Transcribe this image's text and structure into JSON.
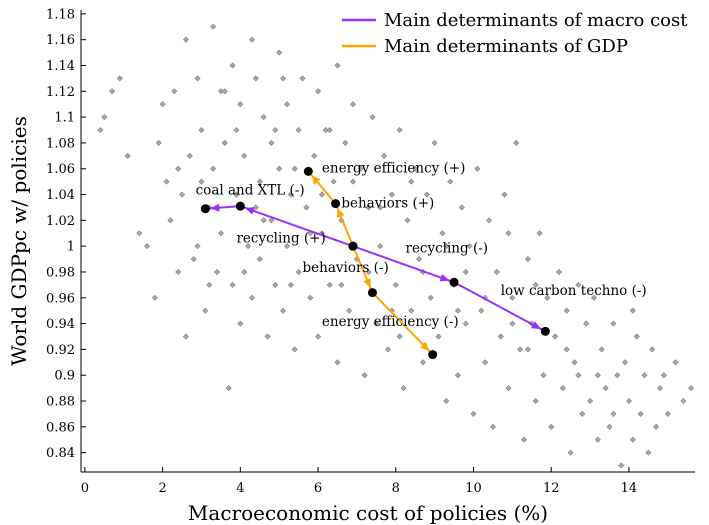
{
  "chart_data": {
    "type": "scatter",
    "xlabel": "Macroeconomic cost of policies (%)",
    "ylabel": "World GDPpc w/ policies",
    "xlim": [
      -0.1,
      15.7
    ],
    "ylim": [
      0.825,
      1.183
    ],
    "x_ticks": [
      0,
      2,
      4,
      6,
      8,
      10,
      12,
      14
    ],
    "y_ticks": [
      0.84,
      0.86,
      0.88,
      0.9,
      0.92,
      0.94,
      0.96,
      0.98,
      1,
      1.02,
      1.04,
      1.06,
      1.08,
      1.1,
      1.12,
      1.14,
      1.16,
      1.18
    ],
    "y_tick_labels": [
      "0.84",
      "0.86",
      "0.88",
      "0.9",
      "0.92",
      "0.94",
      "0.96",
      "0.98",
      "1",
      "1.02",
      "1.04",
      "1.06",
      "1.08",
      "1.1",
      "1.12",
      "1.14",
      "1.16",
      "1.18"
    ],
    "grid": false,
    "legend_position": "top-right",
    "legend": [
      {
        "label": "Main determinants of macro cost",
        "color": "#9b30ff"
      },
      {
        "label": "Main determinants of GDP",
        "color": "#ffa500"
      }
    ],
    "scatter_color": "#a9a9a9",
    "scatter_points": [
      [
        0.4,
        1.09
      ],
      [
        0.5,
        1.1
      ],
      [
        0.7,
        1.12
      ],
      [
        0.9,
        1.13
      ],
      [
        1.1,
        1.07
      ],
      [
        1.4,
        1.01
      ],
      [
        1.6,
        1.0
      ],
      [
        1.8,
        0.96
      ],
      [
        2.0,
        1.11
      ],
      [
        2.1,
        1.05
      ],
      [
        2.3,
        1.12
      ],
      [
        2.4,
        0.98
      ],
      [
        2.5,
        1.04
      ],
      [
        2.6,
        1.16
      ],
      [
        2.6,
        0.93
      ],
      [
        2.7,
        1.07
      ],
      [
        2.8,
        0.99
      ],
      [
        2.9,
        1.13
      ],
      [
        3.0,
        1.09
      ],
      [
        3.1,
        0.95
      ],
      [
        3.2,
        1.03
      ],
      [
        3.3,
        1.17
      ],
      [
        3.3,
        1.06
      ],
      [
        3.4,
        0.98
      ],
      [
        3.5,
        1.12
      ],
      [
        3.5,
        1.01
      ],
      [
        3.6,
        1.08
      ],
      [
        3.7,
        0.89
      ],
      [
        3.8,
        1.14
      ],
      [
        3.8,
        0.97
      ],
      [
        3.9,
        1.04
      ],
      [
        4.0,
        1.11
      ],
      [
        4.0,
        0.94
      ],
      [
        4.1,
        1.07
      ],
      [
        4.2,
        1.0
      ],
      [
        4.3,
        1.16
      ],
      [
        4.3,
        0.96
      ],
      [
        4.4,
        1.13
      ],
      [
        4.5,
        1.05
      ],
      [
        4.5,
        0.99
      ],
      [
        4.6,
        1.1
      ],
      [
        4.7,
        0.93
      ],
      [
        4.8,
        1.08
      ],
      [
        4.8,
        1.02
      ],
      [
        4.9,
        0.97
      ],
      [
        5.0,
        1.15
      ],
      [
        5.0,
        1.06
      ],
      [
        5.1,
        0.95
      ],
      [
        5.2,
        1.11
      ],
      [
        5.2,
        1.0
      ],
      [
        5.3,
        1.04
      ],
      [
        5.4,
        0.92
      ],
      [
        5.5,
        1.09
      ],
      [
        5.5,
        0.98
      ],
      [
        5.6,
        1.13
      ],
      [
        5.7,
        1.03
      ],
      [
        5.8,
        0.96
      ],
      [
        5.9,
        1.07
      ],
      [
        6.0,
        1.12
      ],
      [
        6.0,
        0.93
      ],
      [
        6.1,
        1.01
      ],
      [
        6.2,
        1.09
      ],
      [
        6.3,
        0.97
      ],
      [
        6.4,
        1.05
      ],
      [
        6.5,
        1.14
      ],
      [
        6.5,
        0.91
      ],
      [
        6.6,
        1.02
      ],
      [
        6.7,
        1.08
      ],
      [
        6.8,
        0.95
      ],
      [
        6.9,
        1.11
      ],
      [
        7.0,
        0.99
      ],
      [
        7.1,
        1.06
      ],
      [
        7.2,
        0.9
      ],
      [
        7.3,
        1.03
      ],
      [
        7.4,
        1.1
      ],
      [
        7.5,
        0.94
      ],
      [
        7.6,
        1.0
      ],
      [
        7.7,
        1.07
      ],
      [
        7.8,
        0.92
      ],
      [
        7.9,
        1.04
      ],
      [
        8.0,
        0.97
      ],
      [
        8.1,
        1.09
      ],
      [
        8.2,
        0.89
      ],
      [
        8.3,
        1.02
      ],
      [
        8.4,
        0.95
      ],
      [
        8.5,
        1.06
      ],
      [
        8.6,
        0.99
      ],
      [
        8.7,
        0.91
      ],
      [
        8.8,
        1.04
      ],
      [
        8.9,
        0.96
      ],
      [
        9.0,
        1.08
      ],
      [
        9.1,
        0.93
      ],
      [
        9.2,
        1.01
      ],
      [
        9.3,
        0.88
      ],
      [
        9.4,
        1.05
      ],
      [
        9.5,
        0.97
      ],
      [
        9.6,
        0.9
      ],
      [
        9.7,
        1.03
      ],
      [
        9.8,
        0.94
      ],
      [
        9.9,
        1.0
      ],
      [
        10.0,
        0.87
      ],
      [
        10.1,
        1.06
      ],
      [
        10.2,
        0.95
      ],
      [
        10.3,
        0.91
      ],
      [
        10.4,
        1.02
      ],
      [
        10.5,
        0.86
      ],
      [
        10.6,
        0.98
      ],
      [
        10.7,
        0.93
      ],
      [
        10.8,
        1.04
      ],
      [
        10.9,
        0.89
      ],
      [
        11.0,
        0.96
      ],
      [
        11.1,
        1.08
      ],
      [
        11.2,
        0.92
      ],
      [
        11.3,
        0.85
      ],
      [
        11.4,
        0.99
      ],
      [
        11.5,
        0.94
      ],
      [
        11.6,
        0.88
      ],
      [
        11.7,
        1.01
      ],
      [
        11.8,
        0.9
      ],
      [
        11.9,
        0.96
      ],
      [
        12.0,
        0.86
      ],
      [
        12.1,
        0.93
      ],
      [
        12.2,
        0.98
      ],
      [
        12.3,
        0.89
      ],
      [
        12.4,
        0.95
      ],
      [
        12.5,
        0.84
      ],
      [
        12.6,
        0.91
      ],
      [
        12.7,
        0.97
      ],
      [
        12.8,
        0.87
      ],
      [
        12.9,
        0.94
      ],
      [
        13.0,
        0.88
      ],
      [
        13.1,
        0.96
      ],
      [
        13.2,
        0.85
      ],
      [
        13.3,
        0.92
      ],
      [
        13.4,
        0.89
      ],
      [
        13.5,
        0.86
      ],
      [
        13.6,
        0.94
      ],
      [
        13.7,
        0.9
      ],
      [
        13.8,
        0.83
      ],
      [
        13.9,
        0.91
      ],
      [
        14.0,
        0.88
      ],
      [
        14.1,
        0.85
      ],
      [
        14.2,
        0.93
      ],
      [
        14.3,
        0.87
      ],
      [
        14.4,
        0.9
      ],
      [
        14.5,
        0.84
      ],
      [
        14.6,
        0.92
      ],
      [
        14.7,
        0.86
      ],
      [
        14.8,
        0.89
      ],
      [
        15.0,
        0.87
      ],
      [
        15.2,
        0.91
      ],
      [
        15.4,
        0.88
      ],
      [
        15.6,
        0.89
      ],
      [
        1.9,
        1.08
      ],
      [
        2.2,
        1.02
      ],
      [
        2.9,
        1.0
      ],
      [
        3.6,
        1.12
      ],
      [
        4.1,
        0.98
      ],
      [
        4.6,
        1.02
      ],
      [
        5.1,
        1.13
      ],
      [
        5.4,
        1.06
      ],
      [
        6.1,
        1.04
      ],
      [
        6.6,
        0.97
      ],
      [
        7.3,
        0.98
      ],
      [
        7.9,
        0.95
      ],
      [
        8.4,
        1.05
      ],
      [
        9.3,
        1.0
      ],
      [
        9.8,
        0.98
      ],
      [
        10.3,
        0.96
      ],
      [
        11.0,
        0.94
      ],
      [
        11.6,
        0.97
      ],
      [
        12.4,
        0.92
      ],
      [
        13.2,
        0.9
      ],
      [
        14.1,
        0.95
      ],
      [
        3.0,
        1.05
      ],
      [
        3.9,
        1.09
      ],
      [
        4.4,
        1.03
      ],
      [
        5.3,
        0.97
      ],
      [
        6.9,
        1.05
      ],
      [
        7.6,
        1.03
      ],
      [
        8.7,
        0.98
      ],
      [
        10.9,
        1.01
      ],
      [
        12.7,
        0.9
      ],
      [
        2.4,
        1.06
      ],
      [
        3.2,
        0.97
      ],
      [
        4.9,
        1.09
      ],
      [
        5.8,
        1.01
      ],
      [
        6.3,
        1.09
      ],
      [
        8.1,
        0.93
      ],
      [
        9.6,
        0.95
      ],
      [
        11.4,
        0.92
      ],
      [
        13.6,
        0.87
      ],
      [
        14.9,
        0.9
      ]
    ],
    "macro_cost_path": {
      "color": "#9b30ff",
      "points": [
        [
          3.1,
          1.029
        ],
        [
          4.0,
          1.031
        ],
        [
          6.9,
          1.0
        ],
        [
          9.5,
          0.972
        ],
        [
          11.85,
          0.934
        ]
      ]
    },
    "gdp_path": {
      "color": "#ffa500",
      "points": [
        [
          5.75,
          1.058
        ],
        [
          6.45,
          1.033
        ],
        [
          6.9,
          1.0
        ],
        [
          7.4,
          0.964
        ],
        [
          8.95,
          0.916
        ]
      ]
    },
    "annotations": [
      {
        "text": "energy efficiency (+)",
        "x": 6.1,
        "y": 1.057,
        "anchor": "start"
      },
      {
        "text": "coal and XTL (-)",
        "x": 2.85,
        "y": 1.04,
        "anchor": "start"
      },
      {
        "text": "behaviors (+)",
        "x": 6.6,
        "y": 1.03,
        "anchor": "start"
      },
      {
        "text": "recycling (+)",
        "x": 3.9,
        "y": 1.003,
        "anchor": "start"
      },
      {
        "text": "recycling (-)",
        "x": 8.25,
        "y": 0.995,
        "anchor": "start"
      },
      {
        "text": "behaviors (-)",
        "x": 5.6,
        "y": 0.98,
        "anchor": "start"
      },
      {
        "text": "low carbon techno (-)",
        "x": 10.7,
        "y": 0.962,
        "anchor": "start"
      },
      {
        "text": "energy efficiency (-)",
        "x": 6.1,
        "y": 0.938,
        "anchor": "start"
      }
    ]
  }
}
